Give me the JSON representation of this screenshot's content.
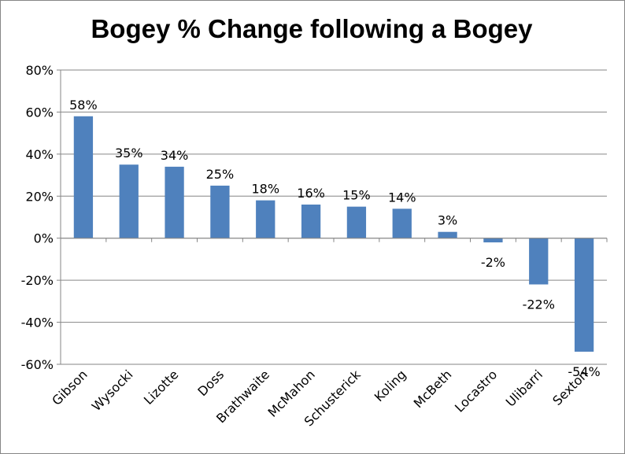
{
  "chart_data": {
    "type": "bar",
    "title": "Bogey % Change following a Bogey",
    "categories": [
      "Gibson",
      "Wysocki",
      "Lizotte",
      "Doss",
      "Brathwaite",
      "McMahon",
      "Schusterick",
      "Koling",
      "McBeth",
      "Locastro",
      "Ulibarri",
      "Sexton"
    ],
    "values": [
      58,
      35,
      34,
      25,
      18,
      16,
      15,
      14,
      3,
      -2,
      -22,
      -54
    ],
    "data_labels": [
      "58%",
      "35%",
      "34%",
      "25%",
      "18%",
      "16%",
      "15%",
      "14%",
      "3%",
      "-2%",
      "-22%",
      "-54%"
    ],
    "ylim": [
      -60,
      80
    ],
    "yticks": [
      80,
      60,
      40,
      20,
      0,
      -20,
      -40,
      -60
    ],
    "ytick_labels": [
      "80%",
      "60%",
      "40%",
      "20%",
      "0%",
      "-20%",
      "-40%",
      "-60%"
    ],
    "xlabel": "",
    "ylabel": "",
    "grid": true,
    "legend": "none",
    "bar_color": "#4F81BD",
    "grid_color": "#868686"
  }
}
